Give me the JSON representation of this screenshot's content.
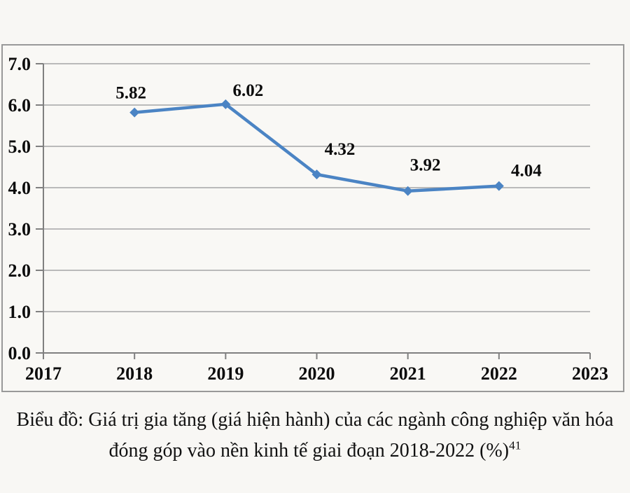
{
  "caption": {
    "line1": "Biểu đồ: Giá trị gia tăng (giá hiện hành) của các ngành công nghiệp văn hóa",
    "line2": "đóng góp vào nền kinh tế giai đoạn 2018-2022 (%)",
    "footnote_ref": "41"
  },
  "chart_data": {
    "type": "line",
    "title": "",
    "xlabel": "",
    "ylabel": "",
    "x": [
      2018,
      2019,
      2020,
      2021,
      2022
    ],
    "values": [
      5.82,
      6.02,
      4.32,
      3.92,
      4.04
    ],
    "data_labels": [
      "5.82",
      "6.02",
      "4.32",
      "3.92",
      "4.04"
    ],
    "x_ticks": [
      "2017",
      "2018",
      "2019",
      "2020",
      "2021",
      "2022",
      "2023"
    ],
    "y_ticks": [
      "0.0",
      "1.0",
      "2.0",
      "3.0",
      "4.0",
      "5.0",
      "6.0",
      "7.0"
    ],
    "xlim": [
      2017,
      2023
    ],
    "ylim": [
      0,
      7
    ],
    "grid": true,
    "legend": "none",
    "marker": "diamond",
    "line_color": "#4b84c4",
    "grid_color": "#a6a6a6",
    "axis_color": "#808080",
    "box_border_color": "#999999"
  }
}
